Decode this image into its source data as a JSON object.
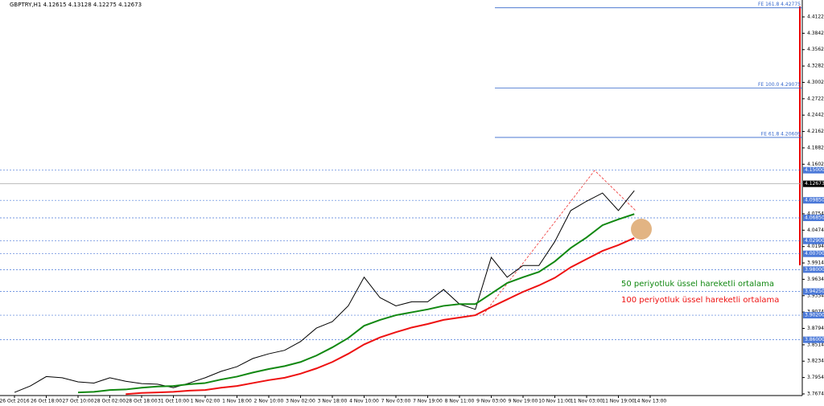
{
  "chart_data": {
    "type": "line",
    "title": "GBPTRY,H1  4.12615 4.13128 4.12275 4.12673",
    "categories": [
      "26 Oct 2016",
      null,
      "26 Oct 18:00",
      null,
      "27 Oct 10:00",
      null,
      "28 Oct 02:00",
      null,
      "28 Oct 18:00",
      null,
      "31 Oct 10:00",
      null,
      "1 Nov 02:00",
      null,
      "1 Nov 18:00",
      null,
      "2 Nov 10:00",
      null,
      "3 Nov 02:00",
      null,
      "3 Nov 18:00",
      null,
      "4 Nov 10:00",
      null,
      "7 Nov 03:00",
      null,
      "7 Nov 19:00",
      null,
      "8 Nov 11:00",
      null,
      "9 Nov 03:00",
      null,
      "9 Nov 19:00",
      null,
      "10 Nov 11:00",
      null,
      "11 Nov 03:00",
      null,
      "11 Nov 19:00",
      null,
      "14 Nov 13:00"
    ],
    "series": [
      {
        "name": "GBPTRY",
        "color": "#000000",
        "values": [
          3.77,
          3.781,
          3.797,
          3.795,
          3.788,
          3.786,
          3.795,
          3.789,
          3.785,
          3.784,
          3.778,
          3.786,
          3.795,
          3.806,
          3.814,
          3.828,
          3.836,
          3.842,
          3.857,
          3.88,
          3.891,
          3.918,
          3.967,
          3.932,
          3.918,
          3.925,
          3.925,
          3.946,
          3.921,
          3.912,
          4.001,
          3.967,
          3.987,
          3.987,
          4.028,
          4.081,
          4.097,
          4.111,
          4.081,
          4.115,
          null
        ]
      },
      {
        "name": "50 periyotluk üssel hareketli ortalama",
        "color": "#118811",
        "values": [
          null,
          null,
          null,
          null,
          3.77,
          3.771,
          3.774,
          3.775,
          3.778,
          3.78,
          3.781,
          3.784,
          3.786,
          3.792,
          3.797,
          3.804,
          3.81,
          3.815,
          3.822,
          3.833,
          3.847,
          3.863,
          3.884,
          3.894,
          3.902,
          3.907,
          3.912,
          3.918,
          3.921,
          3.921,
          3.939,
          3.957,
          3.967,
          3.976,
          3.994,
          4.017,
          4.035,
          4.056,
          4.066,
          4.075,
          null
        ]
      },
      {
        "name": "100 periyotluk üssel hareketli ortalama",
        "color": "#ee1111",
        "values": [
          null,
          null,
          null,
          null,
          null,
          null,
          null,
          3.767,
          3.769,
          3.77,
          3.771,
          3.773,
          3.774,
          3.778,
          3.781,
          3.786,
          3.791,
          3.795,
          3.802,
          3.811,
          3.822,
          3.836,
          3.852,
          3.864,
          3.873,
          3.881,
          3.887,
          3.894,
          3.898,
          3.902,
          3.916,
          3.929,
          3.942,
          3.953,
          3.966,
          3.984,
          3.998,
          4.012,
          4.022,
          4.034,
          null
        ]
      }
    ],
    "ylim": [
      3.7646,
      4.4411
    ],
    "yticks": [
      {
        "value": 4.4122,
        "label": "4.41220"
      },
      {
        "value": 4.3842,
        "label": "4.38420"
      },
      {
        "value": 4.3562,
        "label": "4.35620"
      },
      {
        "value": 4.3282,
        "label": "4.32820"
      },
      {
        "value": 4.3002,
        "label": "4.30020"
      },
      {
        "value": 4.2722,
        "label": "4.27220"
      },
      {
        "value": 4.2442,
        "label": "4.24420"
      },
      {
        "value": 4.2162,
        "label": "4.21620"
      },
      {
        "value": 4.1882,
        "label": "4.18820"
      },
      {
        "value": 4.1602,
        "label": "4.16020"
      },
      {
        "value": 4.0754,
        "label": "4.07540"
      },
      {
        "value": 4.0474,
        "label": "4.04740"
      },
      {
        "value": 4.0194,
        "label": "4.01940"
      },
      {
        "value": 3.9914,
        "label": "3.99140"
      },
      {
        "value": 3.9634,
        "label": "3.96340"
      },
      {
        "value": 3.9354,
        "label": "3.93540"
      },
      {
        "value": 3.9074,
        "label": "3.90740"
      },
      {
        "value": 3.8794,
        "label": "3.87940"
      },
      {
        "value": 3.8514,
        "label": "3.85140"
      },
      {
        "value": 3.8234,
        "label": "3.82340"
      },
      {
        "value": 3.7954,
        "label": "3.79540"
      },
      {
        "value": 3.7674,
        "label": "3.76740"
      }
    ],
    "levels": [
      {
        "value": 4.15,
        "label": "4.15000"
      },
      {
        "value": 4.0985,
        "label": "4.09850"
      },
      {
        "value": 4.0685,
        "label": "4.06850"
      },
      {
        "value": 4.029,
        "label": "4.02900"
      },
      {
        "value": 4.007,
        "label": "4.00700"
      },
      {
        "value": 3.98,
        "label": "3.98000"
      },
      {
        "value": 3.9425,
        "label": "3.94250"
      },
      {
        "value": 3.902,
        "label": "3.90200"
      },
      {
        "value": 3.86,
        "label": "3.86000"
      }
    ],
    "fibo_levels": [
      {
        "value": 4.42775,
        "label": "FE 161.8 4.42775"
      },
      {
        "value": 4.29075,
        "label": "FE 100.0 4.29075"
      },
      {
        "value": 4.20609,
        "label": "FE 61.8 4.20609"
      }
    ],
    "current_price": {
      "value": 4.12673,
      "label": "4.12673"
    }
  }
}
